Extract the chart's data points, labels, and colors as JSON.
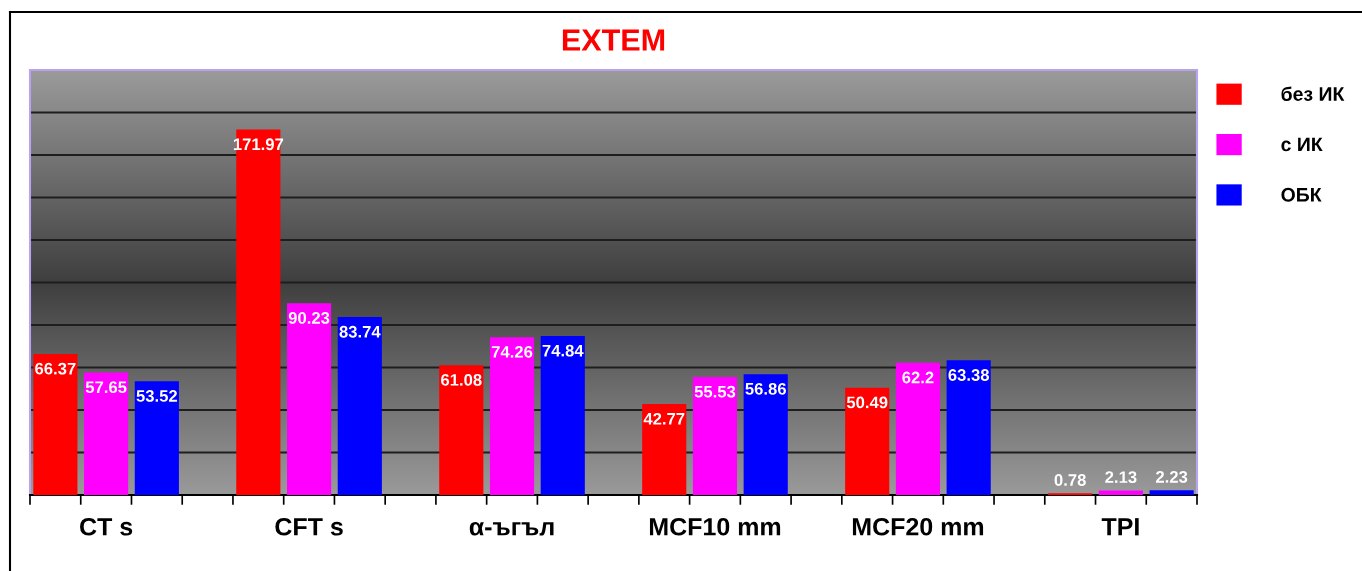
{
  "chart_data": {
    "type": "bar",
    "title": "EXTEM",
    "categories": [
      "CT s",
      "CFT s",
      "α-ъгъл",
      "MCF10 mm",
      "MCF20 mm",
      "TPI"
    ],
    "series": [
      {
        "name": "без ИК",
        "color": "#ff0000",
        "values": [
          66.37,
          171.97,
          61.08,
          42.77,
          50.49,
          0.78
        ]
      },
      {
        "name": "с ИК",
        "color": "#ff00ff",
        "values": [
          57.65,
          90.23,
          74.26,
          55.53,
          62.2,
          2.13
        ]
      },
      {
        "name": "ОБК",
        "color": "#0000ff",
        "values": [
          53.52,
          83.74,
          74.84,
          56.86,
          63.38,
          2.23
        ]
      }
    ],
    "ylim": [
      0,
      200
    ],
    "yticks": [
      {
        "value": 0,
        "label": null
      },
      {
        "value": 20,
        "label": null
      },
      {
        "value": 40,
        "label": null
      },
      {
        "value": 60,
        "label": null
      },
      {
        "value": 80,
        "label": null
      },
      {
        "value": 100,
        "label": null
      },
      {
        "value": 120,
        "label": null
      },
      {
        "value": 140,
        "label": null
      },
      {
        "value": 160,
        "label": null
      },
      {
        "value": 180,
        "label": null
      },
      {
        "value": 200,
        "label": null
      }
    ],
    "grid": "y",
    "legend": "right",
    "tick_labels": "x",
    "data_labels": true
  }
}
